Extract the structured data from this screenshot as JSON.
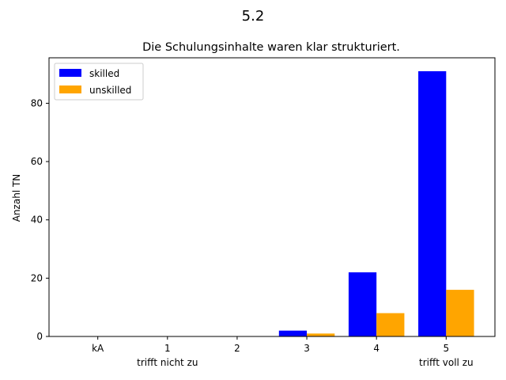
{
  "chart_data": {
    "type": "bar",
    "suptitle": "5.2",
    "title": "Die Schulungsinhalte waren klar strukturiert.",
    "xlabel": "",
    "ylabel": "Anzahl TN",
    "categories": [
      "kA",
      "1",
      "2",
      "3",
      "4",
      "5"
    ],
    "category_sublabels": [
      "",
      "trifft nicht zu",
      "",
      "",
      "",
      "trifft voll zu"
    ],
    "series": [
      {
        "name": "skilled",
        "color": "#0000ff",
        "values": [
          0,
          0,
          0,
          2,
          22,
          91
        ]
      },
      {
        "name": "unskilled",
        "color": "#ffa500",
        "values": [
          0,
          0,
          0,
          1,
          8,
          16
        ]
      }
    ],
    "ylim": [
      0,
      95.6
    ],
    "yticks": [
      0,
      20,
      40,
      60,
      80
    ],
    "grid": false,
    "legend_position": "top-left"
  }
}
